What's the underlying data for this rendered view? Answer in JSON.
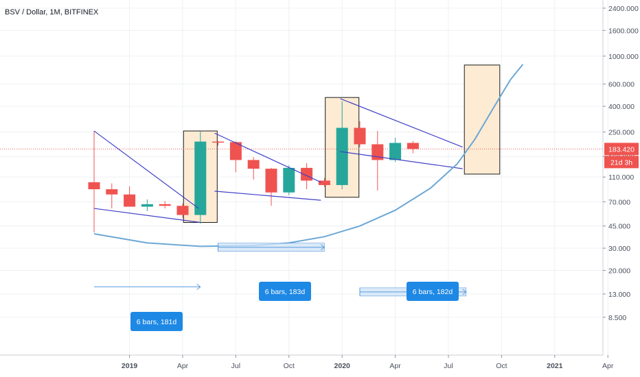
{
  "chart_title": "BSV / Dollar, 1M, BITFINEX",
  "colors": {
    "up": "#26a69a",
    "down": "#ef5350",
    "trendline": "#3f3fc8",
    "curve": "#6aa7d6",
    "box_fill": "#fdebd3",
    "measure_fill": "#cfe3f7",
    "measure_line": "#5a9cdc",
    "label_bg": "#1e88e5",
    "price_line": "#ef5350",
    "grid": "#eef0f3"
  },
  "current_price": {
    "value": 183.42,
    "label": "183.420",
    "countdown": "21d 3h"
  },
  "chart_data": {
    "type": "candlestick",
    "y_scale": "log",
    "ylim": [
      5.9,
      2650
    ],
    "y_ticks": [
      {
        "v": 2400,
        "label": "2400.000"
      },
      {
        "v": 1600,
        "label": "1600.000"
      },
      {
        "v": 1000,
        "label": "1000.000"
      },
      {
        "v": 600,
        "label": "600.000"
      },
      {
        "v": 400,
        "label": "400.000"
      },
      {
        "v": 250,
        "label": "250.000"
      },
      {
        "v": 160,
        "label": "160.000"
      },
      {
        "v": 110,
        "label": "110.000"
      },
      {
        "v": 70,
        "label": "70.000"
      },
      {
        "v": 45,
        "label": "45.000"
      },
      {
        "v": 30,
        "label": "30.000"
      },
      {
        "v": 20,
        "label": "20.000"
      },
      {
        "v": 13,
        "label": "13.000"
      },
      {
        "v": 8.5,
        "label": "8.500"
      }
    ],
    "x_ticks": [
      {
        "date": "2019-01",
        "label": "2019",
        "bold": true
      },
      {
        "date": "2019-04",
        "label": "Apr",
        "bold": false
      },
      {
        "date": "2019-07",
        "label": "Jul",
        "bold": false
      },
      {
        "date": "2019-10",
        "label": "Oct",
        "bold": false
      },
      {
        "date": "2020-01",
        "label": "2020",
        "bold": true
      },
      {
        "date": "2020-04",
        "label": "Apr",
        "bold": false
      },
      {
        "date": "2020-07",
        "label": "Jul",
        "bold": false
      },
      {
        "date": "2020-10",
        "label": "Oct",
        "bold": false
      },
      {
        "date": "2021-01",
        "label": "2021",
        "bold": true
      },
      {
        "date": "2021-04",
        "label": "Apr",
        "bold": false
      }
    ],
    "candles": [
      {
        "date": "2018-11",
        "open": 100,
        "high": 255,
        "low": 40,
        "close": 88
      },
      {
        "date": "2018-12",
        "open": 88,
        "high": 98,
        "low": 62,
        "close": 80
      },
      {
        "date": "2019-01",
        "open": 80,
        "high": 93,
        "low": 64,
        "close": 64
      },
      {
        "date": "2019-02",
        "open": 64,
        "high": 73,
        "low": 59,
        "close": 67
      },
      {
        "date": "2019-03",
        "open": 67,
        "high": 71,
        "low": 62,
        "close": 65
      },
      {
        "date": "2019-04",
        "open": 65,
        "high": 68,
        "low": 52,
        "close": 55
      },
      {
        "date": "2019-05",
        "open": 55,
        "high": 255,
        "low": 47,
        "close": 210
      },
      {
        "date": "2019-06",
        "open": 210,
        "high": 213,
        "low": 195,
        "close": 208
      },
      {
        "date": "2019-07",
        "open": 208,
        "high": 212,
        "low": 120,
        "close": 150
      },
      {
        "date": "2019-08",
        "open": 150,
        "high": 158,
        "low": 105,
        "close": 128
      },
      {
        "date": "2019-09",
        "open": 128,
        "high": 130,
        "low": 65,
        "close": 83
      },
      {
        "date": "2019-10",
        "open": 83,
        "high": 136,
        "low": 79,
        "close": 130
      },
      {
        "date": "2019-11",
        "open": 130,
        "high": 142,
        "low": 88,
        "close": 103
      },
      {
        "date": "2019-12",
        "open": 103,
        "high": 108,
        "low": 92,
        "close": 95
      },
      {
        "date": "2020-01",
        "open": 95,
        "high": 440,
        "low": 88,
        "close": 270
      },
      {
        "date": "2020-02",
        "open": 270,
        "high": 305,
        "low": 190,
        "close": 200
      },
      {
        "date": "2020-03",
        "open": 200,
        "high": 255,
        "low": 86,
        "close": 150
      },
      {
        "date": "2020-04",
        "open": 150,
        "high": 225,
        "low": 145,
        "close": 205
      },
      {
        "date": "2020-05",
        "open": 205,
        "high": 212,
        "low": 170,
        "close": 183.42
      }
    ],
    "date_ranges": [
      {
        "label": "6 bars, 181d",
        "from": "2018-11",
        "to": "2019-05"
      },
      {
        "label": "6 bars, 183d",
        "from": "2019-06",
        "to": "2019-12"
      },
      {
        "label": "6 bars, 182d",
        "from": "2020-02",
        "to": "2020-08"
      }
    ]
  }
}
